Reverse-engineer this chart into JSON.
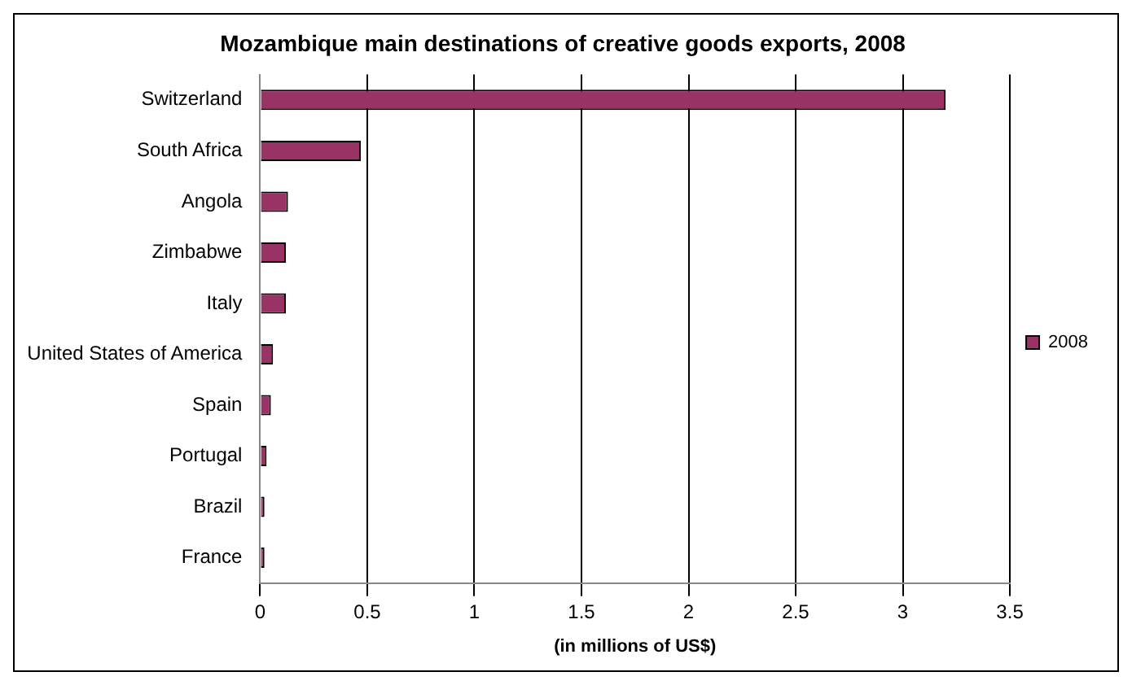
{
  "chart_data": {
    "type": "bar",
    "orientation": "horizontal",
    "title": "Mozambique main destinations of creative goods exports, 2008",
    "xlabel": "(in millions of US$)",
    "categories": [
      "Switzerland",
      "South Africa",
      "Angola",
      "Zimbabwe",
      "Italy",
      "United States of America",
      "Spain",
      "Portugal",
      "Brazil",
      "France"
    ],
    "series": [
      {
        "name": "2008",
        "color": "#993366",
        "values": [
          3.2,
          0.47,
          0.13,
          0.12,
          0.12,
          0.06,
          0.05,
          0.03,
          0.02,
          0.02
        ]
      }
    ],
    "xlim": [
      0,
      3.5
    ],
    "xticks": [
      0,
      0.5,
      1,
      1.5,
      2,
      2.5,
      3,
      3.5
    ],
    "grid": "x",
    "legend": "right"
  }
}
